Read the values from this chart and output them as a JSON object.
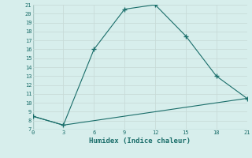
{
  "xlabel": "Humidex (Indice chaleur)",
  "bg_color": "#d7eeec",
  "grid_color": "#c8dbd8",
  "line_color": "#1a6e6a",
  "xlim": [
    0,
    21
  ],
  "ylim": [
    7,
    21
  ],
  "xticks": [
    0,
    3,
    6,
    9,
    12,
    15,
    18,
    21
  ],
  "yticks": [
    7,
    8,
    9,
    10,
    11,
    12,
    13,
    14,
    15,
    16,
    17,
    18,
    19,
    20,
    21
  ],
  "line1_x": [
    0,
    3,
    6,
    9,
    12,
    15,
    18,
    21
  ],
  "line1_y": [
    8.5,
    7.5,
    16.0,
    20.5,
    21.0,
    17.5,
    13.0,
    10.5
  ],
  "line2_x": [
    0,
    3,
    21
  ],
  "line2_y": [
    8.5,
    7.5,
    10.5
  ]
}
